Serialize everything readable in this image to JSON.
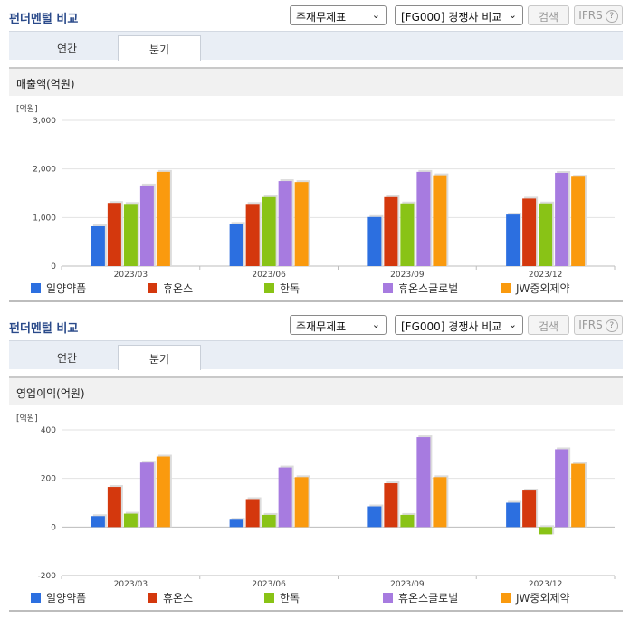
{
  "colors": {
    "series": [
      "#2c6fe0",
      "#d4380d",
      "#89c316",
      "#a77be0",
      "#fa9a0e"
    ]
  },
  "panels": [
    {
      "header": {
        "title": "펀더멘털 비교",
        "select_type": "주재무제표",
        "select_compare": "[FG000] 경쟁사 비교",
        "search_label": "검색",
        "ifrs_label": "IFRS"
      },
      "tabs": [
        {
          "label": "연간",
          "active": false
        },
        {
          "label": "분기",
          "active": true
        }
      ],
      "chart_title": "매출액(억원)",
      "chart_data": {
        "type": "bar",
        "unit_label": "[억원]",
        "categories": [
          "2023/03",
          "2023/06",
          "2023/09",
          "2023/12"
        ],
        "ylim": [
          0,
          3000
        ],
        "yticks": [
          0,
          1000,
          2000,
          3000
        ],
        "ytick_labels": [
          "0",
          "1,000",
          "2,000",
          "3,000"
        ],
        "series": [
          {
            "name": "일양약품",
            "values": [
              820,
              870,
              1010,
              1060
            ]
          },
          {
            "name": "휴온스",
            "values": [
              1300,
              1280,
              1420,
              1390
            ]
          },
          {
            "name": "한독",
            "values": [
              1280,
              1420,
              1290,
              1290
            ]
          },
          {
            "name": "휴온스글로벌",
            "values": [
              1660,
              1750,
              1940,
              1920
            ]
          },
          {
            "name": "JW중외제약",
            "values": [
              1940,
              1730,
              1870,
              1840
            ]
          }
        ]
      }
    },
    {
      "header": {
        "title": "펀더멘털 비교",
        "select_type": "주재무제표",
        "select_compare": "[FG000] 경쟁사 비교",
        "search_label": "검색",
        "ifrs_label": "IFRS"
      },
      "tabs": [
        {
          "label": "연간",
          "active": false
        },
        {
          "label": "분기",
          "active": true
        }
      ],
      "chart_title": "영업이익(억원)",
      "chart_data": {
        "type": "bar",
        "unit_label": "[억원]",
        "categories": [
          "2023/03",
          "2023/06",
          "2023/09",
          "2023/12"
        ],
        "ylim": [
          -200,
          400
        ],
        "yticks": [
          -200,
          0,
          200,
          400
        ],
        "ytick_labels": [
          "-200",
          "0",
          "200",
          "400"
        ],
        "series": [
          {
            "name": "일양약품",
            "values": [
              45,
              30,
              85,
              100
            ]
          },
          {
            "name": "휴온스",
            "values": [
              165,
              115,
              180,
              150
            ]
          },
          {
            "name": "한독",
            "values": [
              55,
              50,
              50,
              -30
            ]
          },
          {
            "name": "휴온스글로벌",
            "values": [
              265,
              245,
              370,
              320
            ]
          },
          {
            "name": "JW중외제약",
            "values": [
              290,
              205,
              205,
              260
            ]
          }
        ]
      }
    }
  ]
}
